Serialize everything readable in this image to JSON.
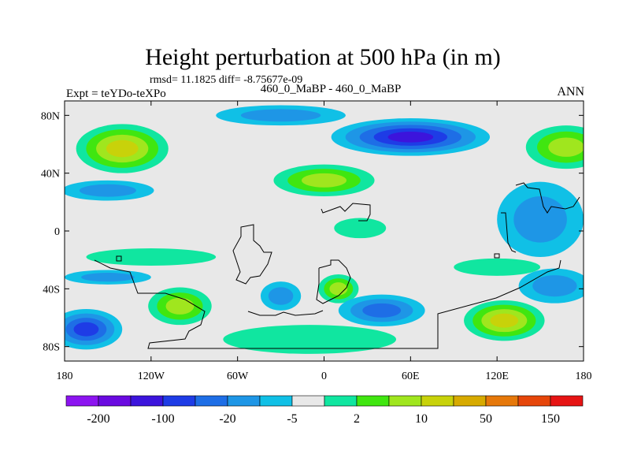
{
  "chart_data": {
    "type": "heatmap",
    "title": "Height perturbation at 500 hPa (in m)",
    "stats_text": "rmsd= 11.1825 diff= -8.75677e-09",
    "left_label": "Expt = teYDo-teXPo",
    "center_label": "460_0_MaBP - 460_0_MaBP",
    "right_label": "ANN",
    "x_range": [
      -180,
      180
    ],
    "y_range": [
      -90,
      90
    ],
    "x_ticks": [
      {
        "value": -180,
        "label": "180"
      },
      {
        "value": -120,
        "label": "120W"
      },
      {
        "value": -60,
        "label": "60W"
      },
      {
        "value": 0,
        "label": "0"
      },
      {
        "value": 60,
        "label": "60E"
      },
      {
        "value": 120,
        "label": "120E"
      },
      {
        "value": 180,
        "label": "180"
      }
    ],
    "y_ticks": [
      {
        "value": 80,
        "label": "80N"
      },
      {
        "value": 40,
        "label": "40N"
      },
      {
        "value": 0,
        "label": "0"
      },
      {
        "value": -40,
        "label": "40S"
      },
      {
        "value": -80,
        "label": "80S"
      }
    ],
    "colorbar": {
      "colors": [
        "#8c14f0",
        "#6a0ae0",
        "#3c14dc",
        "#1e3ce6",
        "#1e6ee6",
        "#1e96e6",
        "#10c0e6",
        "#e8e8e8",
        "#10e6a0",
        "#40e610",
        "#a0e61e",
        "#c8d20a",
        "#d7aa00",
        "#e6780a",
        "#e6460a",
        "#e61414"
      ],
      "labels": [
        {
          "boundary": 1,
          "text": "-200"
        },
        {
          "boundary": 3,
          "text": "-100"
        },
        {
          "boundary": 5,
          "text": "-20"
        },
        {
          "boundary": 7,
          "text": "-5"
        },
        {
          "boundary": 9,
          "text": "2"
        },
        {
          "boundary": 11,
          "text": "10"
        },
        {
          "boundary": 13,
          "text": "50"
        },
        {
          "boundary": 15,
          "text": "150"
        }
      ]
    },
    "anomalies": [
      {
        "lon": -140,
        "lat": 57,
        "level": 4,
        "rx": 32,
        "ry": 17
      },
      {
        "lon": 168,
        "lat": 58,
        "level": 3,
        "rx": 28,
        "ry": 15
      },
      {
        "lon": 0,
        "lat": 35,
        "level": 3,
        "rx": 35,
        "ry": 11
      },
      {
        "lon": 60,
        "lat": 65,
        "level": -5,
        "rx": 55,
        "ry": 13
      },
      {
        "lon": -30,
        "lat": 80,
        "level": -2,
        "rx": 45,
        "ry": 7
      },
      {
        "lon": -150,
        "lat": 28,
        "level": -2,
        "rx": 32,
        "ry": 7
      },
      {
        "lon": 150,
        "lat": 8,
        "level": -2,
        "rx": 30,
        "ry": 26
      },
      {
        "lon": 25,
        "lat": 2,
        "level": 1,
        "rx": 18,
        "ry": 7
      },
      {
        "lon": -120,
        "lat": -18,
        "level": 1,
        "rx": 45,
        "ry": 6
      },
      {
        "lon": -150,
        "lat": -32,
        "level": -2,
        "rx": 30,
        "ry": 5
      },
      {
        "lon": -100,
        "lat": -52,
        "level": 3,
        "rx": 22,
        "ry": 13
      },
      {
        "lon": -165,
        "lat": -68,
        "level": -4,
        "rx": 25,
        "ry": 14
      },
      {
        "lon": -30,
        "lat": -45,
        "level": -2,
        "rx": 14,
        "ry": 10
      },
      {
        "lon": 10,
        "lat": -40,
        "level": 3,
        "rx": 14,
        "ry": 10
      },
      {
        "lon": -10,
        "lat": -75,
        "level": 1,
        "rx": 60,
        "ry": 10
      },
      {
        "lon": 40,
        "lat": -55,
        "level": -3,
        "rx": 30,
        "ry": 11
      },
      {
        "lon": 125,
        "lat": -62,
        "level": 4,
        "rx": 28,
        "ry": 14
      },
      {
        "lon": 160,
        "lat": -38,
        "level": -2,
        "rx": 25,
        "ry": 12
      },
      {
        "lon": 120,
        "lat": -25,
        "level": 1,
        "rx": 30,
        "ry": 6
      }
    ]
  }
}
